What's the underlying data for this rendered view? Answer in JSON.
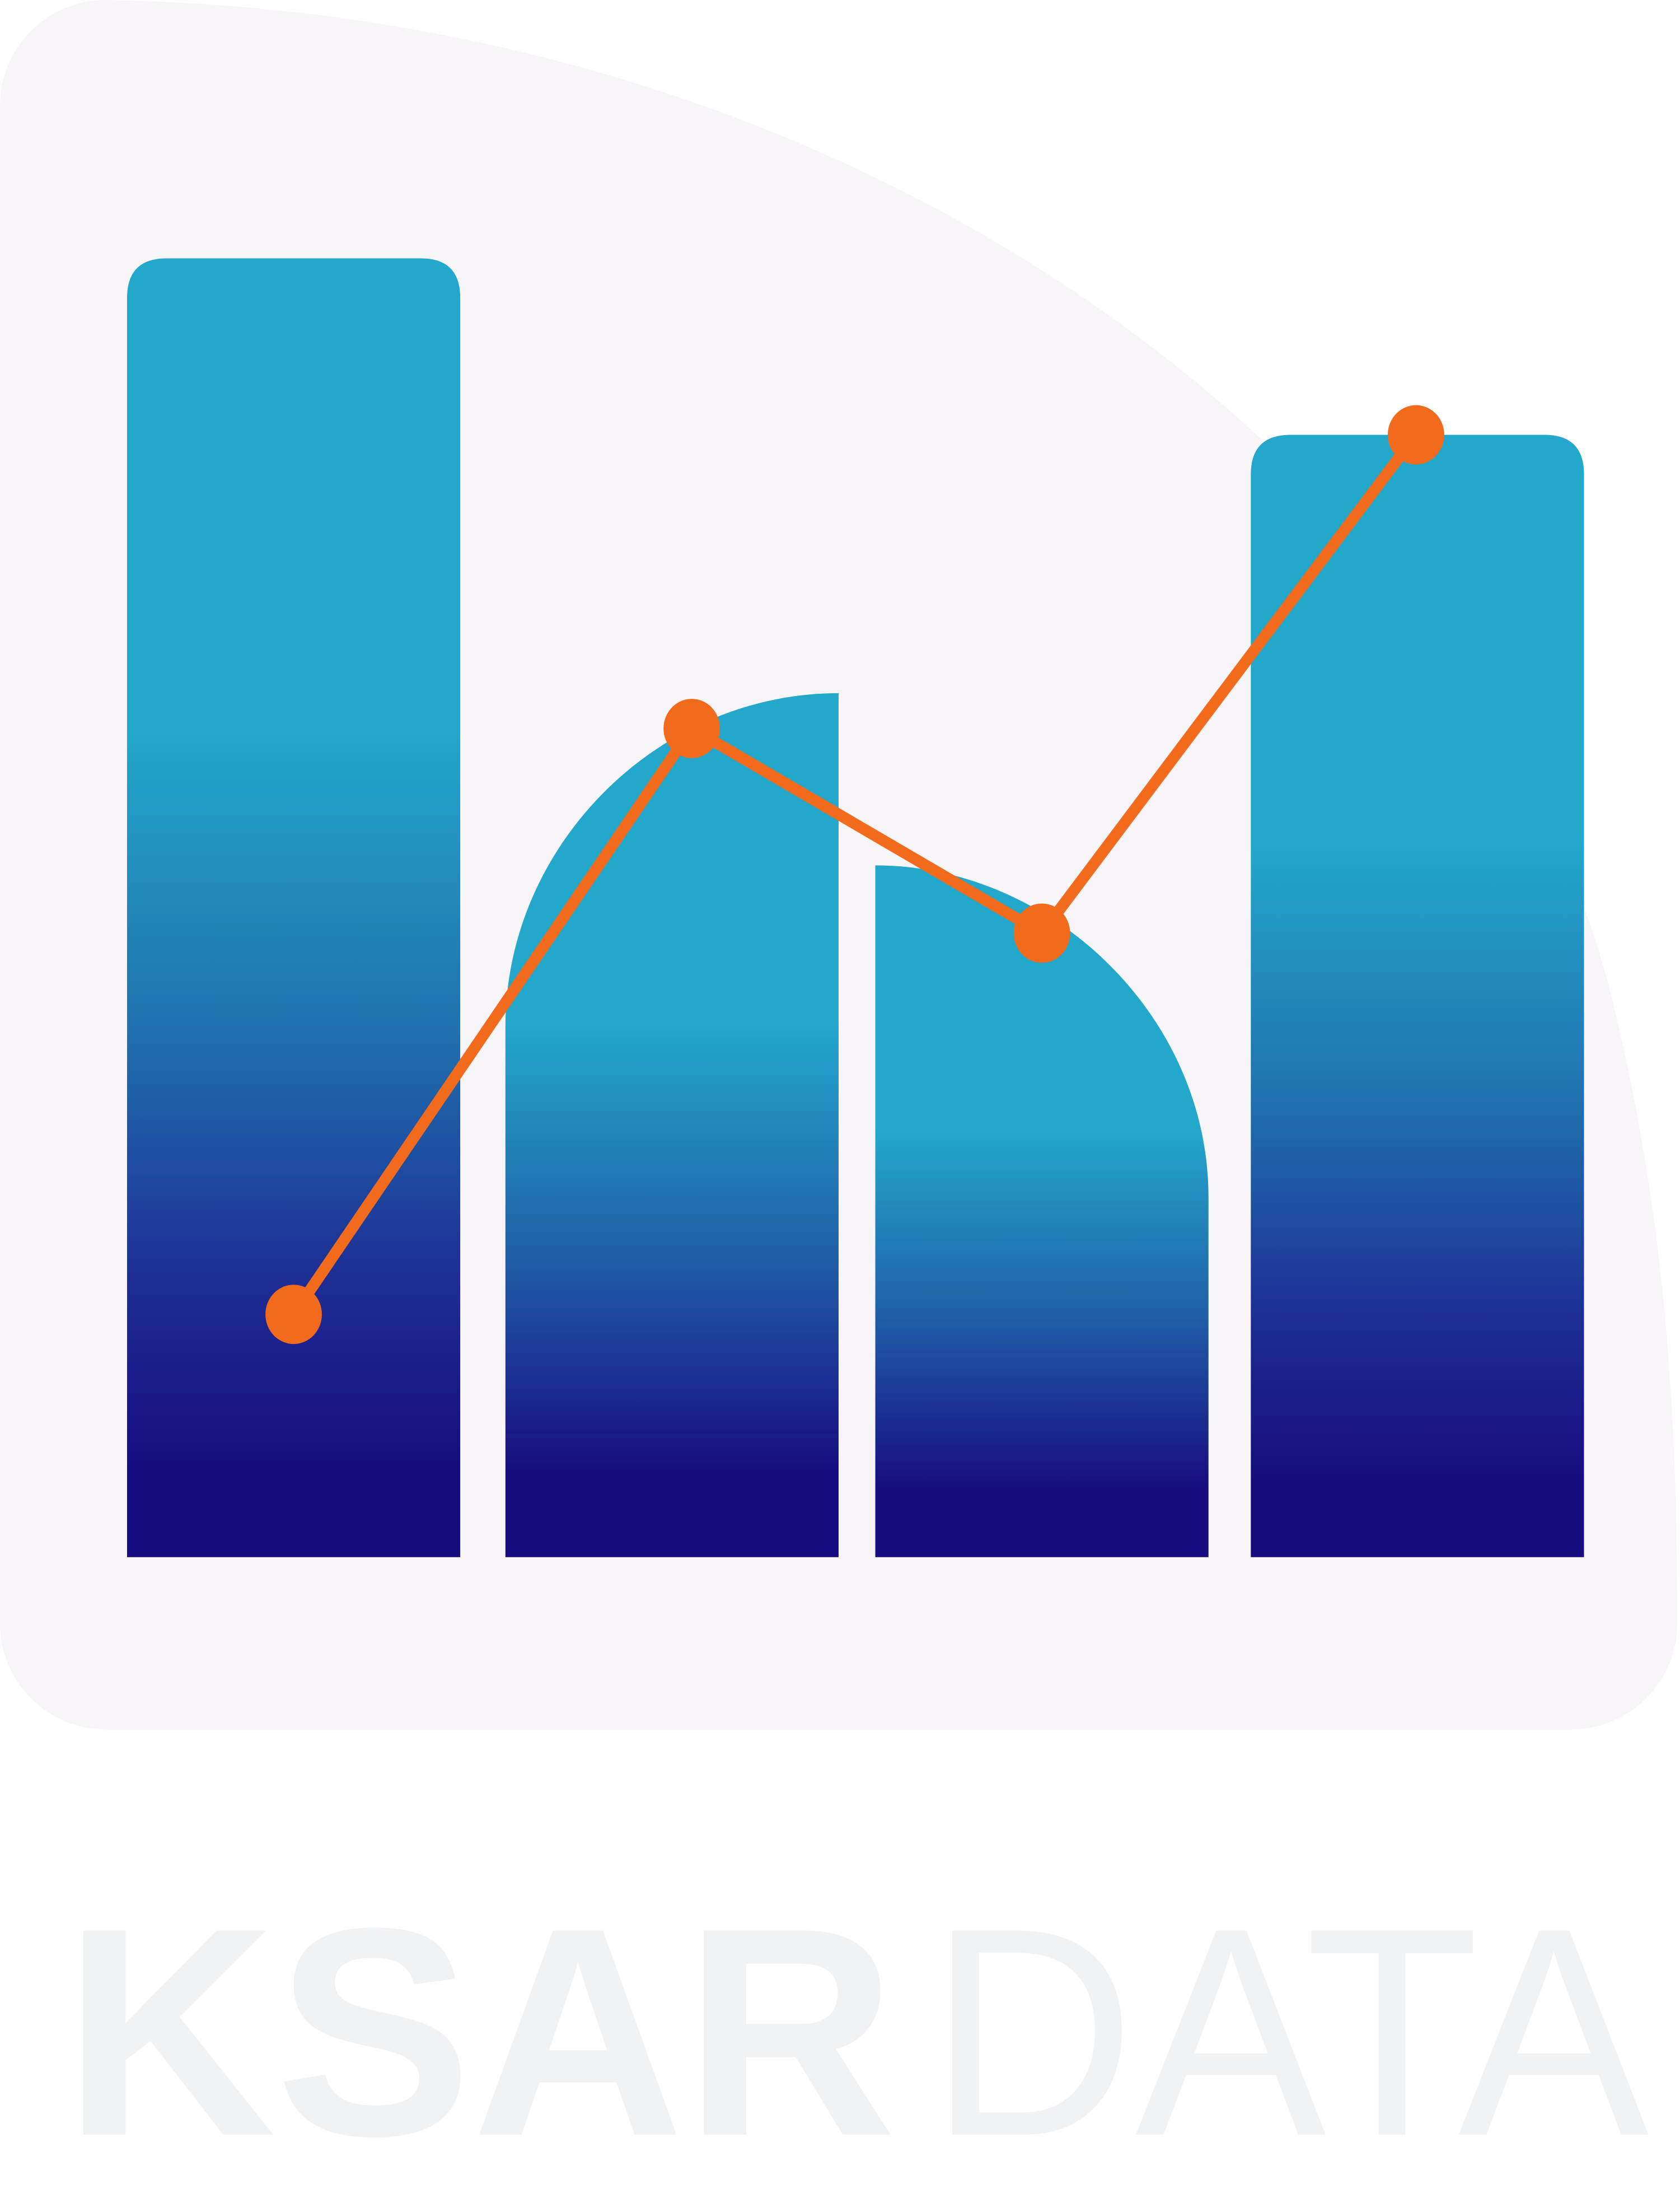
{
  "logo": {
    "wordmark_bold": "KSAR",
    "wordmark_light": "DATA"
  }
}
